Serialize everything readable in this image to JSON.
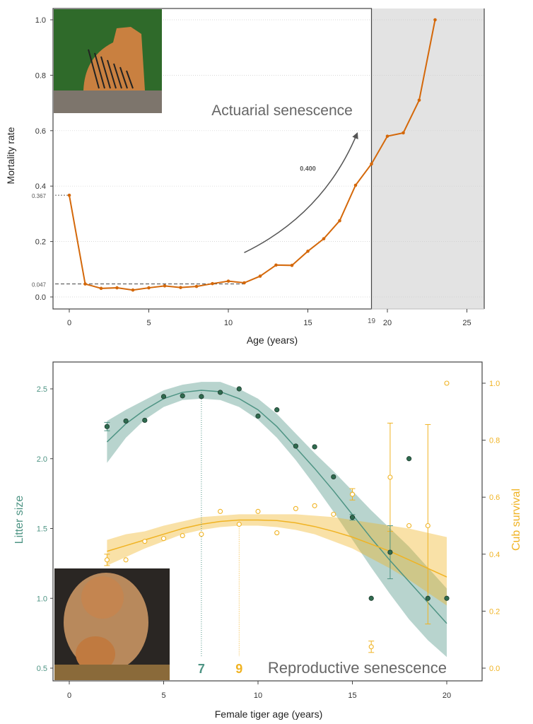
{
  "chart_data": [
    {
      "type": "line",
      "xlabel": "Age (years)",
      "ylabel": "Mortality rate",
      "xlim": [
        -1,
        26
      ],
      "ylim": [
        -0.03,
        1.05
      ],
      "xticks": [
        "0",
        "5",
        "10",
        "15",
        "20",
        "25"
      ],
      "yticks": [
        "0.0",
        "0.2",
        "0.4",
        "0.6",
        "0.8",
        "1.0"
      ],
      "grid": "horizontal dotted",
      "color": "#d4680a",
      "x": [
        0,
        1,
        2,
        3,
        4,
        5,
        6,
        7,
        8,
        9,
        10,
        11,
        12,
        13,
        14,
        15,
        16,
        17,
        18,
        19,
        20,
        21,
        22,
        23
      ],
      "values": [
        0.367,
        0.047,
        0.031,
        0.033,
        0.025,
        0.033,
        0.04,
        0.034,
        0.038,
        0.048,
        0.057,
        0.051,
        0.075,
        0.115,
        0.114,
        0.165,
        0.21,
        0.275,
        0.403,
        0.48,
        0.58,
        0.592,
        0.71,
        1.0
      ],
      "shaded_region": {
        "from": 19,
        "to": 26,
        "label": "19",
        "color": "#e3e3e3"
      },
      "annotations": {
        "title_text": "Actuarial senescence",
        "arrow_label": "0.400",
        "ref_high_label": "0.367",
        "ref_low_label": "0.047",
        "ref_high": 0.367,
        "ref_low": 0.047
      },
      "photo": "adult tiger sitting on rock"
    },
    {
      "type": "scatter",
      "xlabel": "Female tiger age (years)",
      "ylabel": "Litter size",
      "ylabel_right": "Cub survival",
      "xlim": [
        -0.8,
        21.5
      ],
      "ylim": [
        0.42,
        2.65
      ],
      "ylim_right": [
        -0.04,
        1.06
      ],
      "xticks": [
        "0",
        "5",
        "10",
        "15",
        "20"
      ],
      "yticks": [
        "0.5",
        "1.0",
        "1.5",
        "2.0",
        "2.5"
      ],
      "yticks_right": [
        "0.0",
        "0.2",
        "0.4",
        "0.6",
        "0.8",
        "1.0"
      ],
      "x": [
        2,
        3,
        4,
        5,
        6,
        7,
        8,
        9,
        10,
        11,
        12,
        13,
        14,
        15,
        16,
        17,
        18,
        19,
        20
      ],
      "series": [
        {
          "name": "Litter size",
          "axis": "left",
          "color": "#4e9484",
          "point_color": "#2f6b4f",
          "values": [
            2.23,
            2.27,
            2.275,
            2.445,
            2.45,
            2.445,
            2.475,
            2.5,
            2.305,
            2.35,
            2.09,
            2.085,
            1.87,
            1.58,
            1.0,
            1.33,
            2.0,
            1.0,
            1.0
          ],
          "errors": [
            [
              2,
              2.2,
              2.26
            ],
            [
              15,
              1.56,
              1.6
            ],
            [
              17,
              1.14,
              1.52
            ]
          ],
          "fit": [
            2.12,
            2.25,
            2.35,
            2.43,
            2.475,
            2.49,
            2.48,
            2.43,
            2.35,
            2.23,
            2.08,
            1.93,
            1.77,
            1.6,
            1.43,
            1.27,
            1.12,
            0.97,
            0.82
          ],
          "fit_lower": [
            1.97,
            2.15,
            2.28,
            2.37,
            2.42,
            2.43,
            2.42,
            2.37,
            2.28,
            2.15,
            1.99,
            1.81,
            1.62,
            1.42,
            1.22,
            1.03,
            0.85,
            0.7,
            0.58
          ],
          "fit_upper": [
            2.27,
            2.35,
            2.42,
            2.49,
            2.53,
            2.55,
            2.55,
            2.5,
            2.43,
            2.32,
            2.18,
            2.04,
            1.91,
            1.77,
            1.63,
            1.5,
            1.37,
            1.22,
            1.07
          ],
          "peak_label": "7",
          "peak": 7
        },
        {
          "name": "Cub survival",
          "axis": "right",
          "color": "#f0b323",
          "values": [
            0.38,
            0.38,
            0.445,
            0.455,
            0.465,
            0.47,
            0.55,
            0.505,
            0.55,
            0.475,
            0.56,
            0.57,
            0.54,
            0.61,
            0.075,
            0.67,
            0.5,
            0.5,
            1.0
          ],
          "errors": [
            [
              2,
              0.36,
              0.4
            ],
            [
              15,
              0.59,
              0.63
            ],
            [
              16,
              0.055,
              0.095
            ],
            [
              17,
              0.48,
              0.86
            ],
            [
              19,
              0.155,
              0.855
            ]
          ],
          "fit": [
            0.41,
            0.43,
            0.45,
            0.47,
            0.49,
            0.505,
            0.515,
            0.52,
            0.52,
            0.518,
            0.51,
            0.497,
            0.48,
            0.46,
            0.435,
            0.41,
            0.38,
            0.35,
            0.32
          ],
          "fit_lower": [
            0.36,
            0.39,
            0.42,
            0.445,
            0.47,
            0.485,
            0.495,
            0.5,
            0.5,
            0.495,
            0.485,
            0.47,
            0.445,
            0.42,
            0.385,
            0.35,
            0.31,
            0.265,
            0.22
          ],
          "fit_upper": [
            0.45,
            0.47,
            0.48,
            0.5,
            0.515,
            0.53,
            0.535,
            0.54,
            0.54,
            0.54,
            0.54,
            0.535,
            0.53,
            0.52,
            0.51,
            0.5,
            0.49,
            0.475,
            0.46
          ],
          "peak_label": "9",
          "peak": 9
        }
      ],
      "annotations": {
        "title_text": "Reproductive senescence"
      },
      "photo": "tigress with cub"
    }
  ]
}
